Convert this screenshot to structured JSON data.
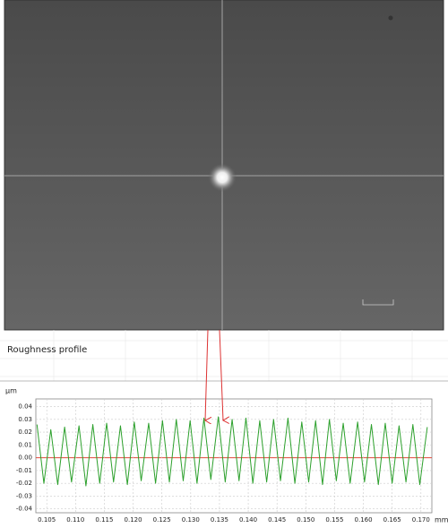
{
  "chart_data": {
    "type": "line",
    "title": "Roughness profile",
    "ylabel": "µm",
    "xlabel": "mm",
    "xlim": [
      0.1031,
      0.1719
    ],
    "ylim": [
      -0.043,
      0.046
    ],
    "xticks": [
      0.105,
      {
        "value": 0.11,
        "label": "0.110"
      },
      0.115,
      {
        "value": 0.12,
        "label": "0.120"
      },
      0.125,
      {
        "value": 0.13,
        "label": "0.130"
      },
      0.135,
      {
        "value": 0.14,
        "label": "0.140"
      },
      0.145,
      {
        "value": 0.15,
        "label": "0.150"
      },
      0.155,
      {
        "value": 0.16,
        "label": "0.160"
      },
      0.165,
      {
        "value": 0.17,
        "label": "0.170"
      }
    ],
    "yticks": [
      0.04,
      0.03,
      0.02,
      0.01,
      {
        "value": 0,
        "label": "0.00"
      },
      -0.01,
      -0.02,
      -0.03,
      -0.04
    ],
    "grid": true,
    "zero_line_color": "#e04a3a",
    "series": [
      {
        "color": "#2ca02c",
        "x": [
          0.1033,
          0.1045,
          0.1057,
          0.1069,
          0.1081,
          0.1093,
          0.1106,
          0.1118,
          0.113,
          0.1142,
          0.1154,
          0.1166,
          0.1178,
          0.119,
          0.1202,
          0.1214,
          0.1227,
          0.1239,
          0.1251,
          0.1263,
          0.1275,
          0.1287,
          0.1299,
          0.1311,
          0.1323,
          0.1335,
          0.1348,
          0.136,
          0.1372,
          0.1384,
          0.1396,
          0.1408,
          0.142,
          0.1432,
          0.1444,
          0.1456,
          0.1469,
          0.1481,
          0.1493,
          0.1505,
          0.1517,
          0.1529,
          0.1541,
          0.1553,
          0.1565,
          0.1577,
          0.159,
          0.1602,
          0.1614,
          0.1626,
          0.1638,
          0.165,
          0.1662,
          0.1674,
          0.1686,
          0.1698,
          0.1711
        ],
        "values": [
          0.026,
          -0.02,
          0.022,
          -0.021,
          0.024,
          -0.019,
          0.025,
          -0.022,
          0.026,
          -0.02,
          0.027,
          -0.019,
          0.025,
          -0.021,
          0.028,
          -0.018,
          0.027,
          -0.02,
          0.029,
          -0.019,
          0.03,
          -0.018,
          0.029,
          -0.02,
          0.031,
          -0.017,
          0.032,
          -0.019,
          0.03,
          -0.018,
          0.031,
          -0.02,
          0.029,
          -0.019,
          0.03,
          -0.018,
          0.031,
          -0.02,
          0.028,
          -0.019,
          0.029,
          -0.021,
          0.03,
          -0.018,
          0.027,
          -0.02,
          0.028,
          -0.019,
          0.026,
          -0.021,
          0.027,
          -0.02,
          0.025,
          -0.019,
          0.026,
          -0.021,
          0.024
        ]
      }
    ]
  }
}
